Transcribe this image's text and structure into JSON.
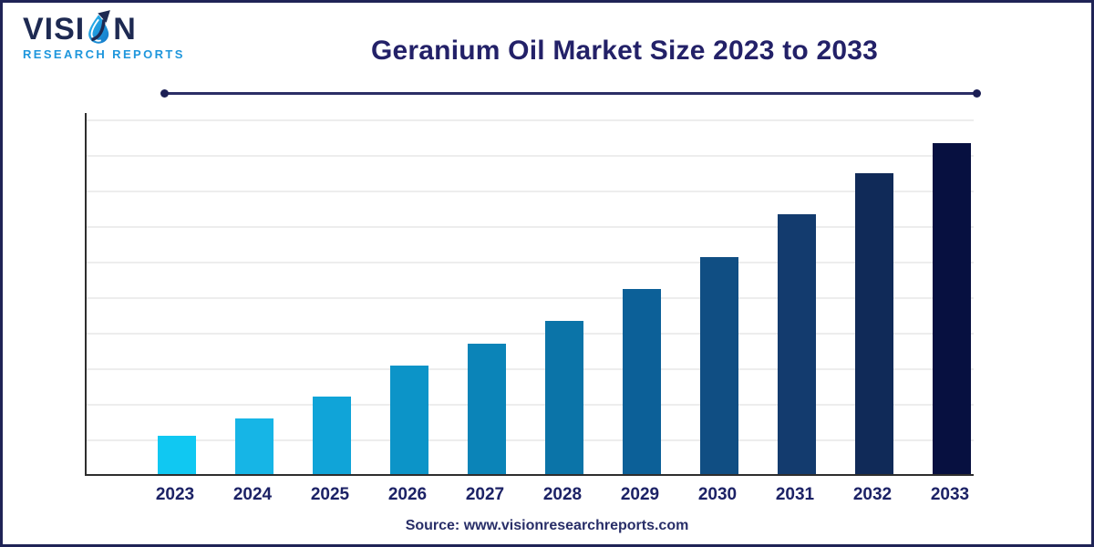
{
  "header": {
    "title": "Geranium Oil Market Size 2023 to 2033",
    "title_color": "#232168",
    "divider_color": "#2b2e66"
  },
  "logo": {
    "wordmark_pre": "VISI",
    "wordmark_post": "N",
    "wordmark_full": "VISION",
    "subtitle": "RESEARCH REPORTS",
    "colors": {
      "wordmark": "#1e2a52",
      "subtitle": "#1e96dc",
      "droplet_light": "#29b9f0",
      "droplet_mid": "#1577c8",
      "arrow_dark": "#1e2a52"
    }
  },
  "chart_data": {
    "type": "bar",
    "title": "Geranium Oil Market Size 2023 to 2033",
    "xlabel": "",
    "ylabel": "",
    "y_axis_tick_labels_visible": false,
    "value_unit": "percent of plot height (chart shows no numeric axis labels)",
    "categories": [
      "2023",
      "2024",
      "2025",
      "2026",
      "2027",
      "2028",
      "2029",
      "2030",
      "2031",
      "2032",
      "2033"
    ],
    "values": [
      10.5,
      15.3,
      21.3,
      29.9,
      35.9,
      42.2,
      51.0,
      59.8,
      71.6,
      82.9,
      91.2
    ],
    "values_gridline_units": [
      1.08,
      1.56,
      2.18,
      3.05,
      3.67,
      4.31,
      5.21,
      6.1,
      7.31,
      8.46,
      9.31
    ],
    "bar_colors": [
      "#10c8f2",
      "#16b5e6",
      "#10a4d8",
      "#0c94c8",
      "#0b84b8",
      "#0b74a8",
      "#0c6098",
      "#104e83",
      "#133b6e",
      "#102a58",
      "#071040"
    ],
    "grid": "horizontal gridlines on",
    "gridline_color": "#ededed",
    "axis_color": "#2e2e2e",
    "tick_label_color": "#1c2266",
    "legend": "none"
  },
  "footer": {
    "source_text": "Source: www.visionresearchreports.com",
    "color": "#282e68"
  }
}
